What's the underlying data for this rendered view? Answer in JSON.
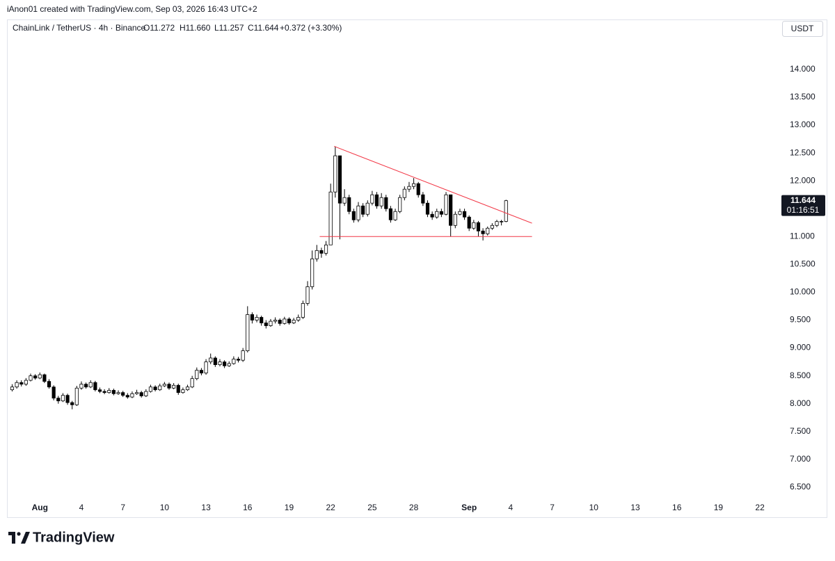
{
  "header": {
    "credit": "iAnon01 created with TradingView.com, Sep 03, 2026 16:43 UTC+2",
    "symbol": "ChainLink / TetherUS · 4h · Binance",
    "ohlc": [
      "O11.272",
      "H11.660",
      "L11.257",
      "C11.644"
    ],
    "change": "+0.372 (+3.30%)",
    "currency": "USDT",
    "countdown": "01:16:51",
    "brand": "TradingView"
  },
  "chart_data": {
    "type": "candlestick",
    "x": [
      -48,
      -40,
      -32,
      -24,
      -16,
      -8,
      0,
      8,
      16,
      24,
      32,
      40,
      48,
      56,
      64,
      72,
      80,
      88,
      96,
      104,
      112,
      120,
      128,
      136,
      144,
      152,
      160,
      168,
      176,
      184,
      192,
      200,
      208,
      216,
      224,
      232,
      240,
      248,
      256,
      264,
      272,
      280,
      288,
      296,
      304,
      312,
      320,
      328,
      336,
      344,
      352,
      360,
      368,
      376,
      384,
      392,
      400,
      408,
      416,
      424,
      432,
      440,
      448,
      456,
      464,
      472,
      480,
      488,
      496,
      504,
      512,
      520,
      528,
      536,
      544,
      552,
      560,
      568,
      576,
      584,
      592,
      600,
      608,
      616,
      624,
      632,
      640,
      648,
      656,
      664,
      672,
      680,
      688,
      696,
      704,
      712,
      720,
      728,
      736,
      744,
      752,
      760,
      768,
      776,
      784,
      792,
      800,
      808
    ],
    "open": [
      8.25,
      8.3,
      8.38,
      8.35,
      8.42,
      8.5,
      8.46,
      8.52,
      8.4,
      8.3,
      8.1,
      8.05,
      8.15,
      8.02,
      7.98,
      8.28,
      8.35,
      8.3,
      8.38,
      8.25,
      8.22,
      8.2,
      8.24,
      8.18,
      8.2,
      8.15,
      8.12,
      8.18,
      8.2,
      8.14,
      8.22,
      8.3,
      8.25,
      8.32,
      8.35,
      8.28,
      8.33,
      8.2,
      8.25,
      8.3,
      8.45,
      8.6,
      8.55,
      8.75,
      8.82,
      8.7,
      8.75,
      8.68,
      8.72,
      8.8,
      8.78,
      8.95,
      9.6,
      9.5,
      9.55,
      9.45,
      9.4,
      9.48,
      9.5,
      9.44,
      9.52,
      9.45,
      9.5,
      9.55,
      9.8,
      10.1,
      10.6,
      10.75,
      10.7,
      10.85,
      11.8,
      12.45,
      11.6,
      11.7,
      11.45,
      11.3,
      11.55,
      11.4,
      11.6,
      11.75,
      11.55,
      11.7,
      11.5,
      11.3,
      11.45,
      11.7,
      11.85,
      11.9,
      11.95,
      11.75,
      11.6,
      11.4,
      11.35,
      11.45,
      11.4,
      11.75,
      11.2,
      11.4,
      11.45,
      11.35,
      11.15,
      11.25,
      11.1,
      11.05,
      11.15,
      11.2,
      11.27,
      11.272
    ],
    "high": [
      8.35,
      8.42,
      8.42,
      8.46,
      8.54,
      8.53,
      8.56,
      8.54,
      8.44,
      8.33,
      8.14,
      8.19,
      8.18,
      8.05,
      8.32,
      8.4,
      8.38,
      8.42,
      8.41,
      8.29,
      8.26,
      8.28,
      8.27,
      8.24,
      8.23,
      8.19,
      8.22,
      8.25,
      8.23,
      8.26,
      8.34,
      8.33,
      8.36,
      8.39,
      8.38,
      8.37,
      8.36,
      8.29,
      8.34,
      8.5,
      8.65,
      8.64,
      8.8,
      8.9,
      8.85,
      8.8,
      8.78,
      8.76,
      8.85,
      8.84,
      9.0,
      9.75,
      9.64,
      9.6,
      9.58,
      9.5,
      9.52,
      9.55,
      9.53,
      9.56,
      9.55,
      9.54,
      9.6,
      9.85,
      10.2,
      10.75,
      10.85,
      10.8,
      10.92,
      11.95,
      12.62,
      12.4,
      11.85,
      11.75,
      11.5,
      11.62,
      11.6,
      11.65,
      11.82,
      11.8,
      11.78,
      11.75,
      11.55,
      11.5,
      11.75,
      11.9,
      11.98,
      12.05,
      11.98,
      11.8,
      11.65,
      11.45,
      11.5,
      11.5,
      11.8,
      11.75,
      11.45,
      11.5,
      11.5,
      11.38,
      11.3,
      11.28,
      11.15,
      11.18,
      11.24,
      11.3,
      11.3,
      11.66
    ],
    "low": [
      8.22,
      8.27,
      8.31,
      8.32,
      8.4,
      8.43,
      8.44,
      8.37,
      8.27,
      8.06,
      8.0,
      8.03,
      7.98,
      7.9,
      7.96,
      8.25,
      8.27,
      8.28,
      8.22,
      8.19,
      8.17,
      8.18,
      8.15,
      8.16,
      8.12,
      8.09,
      8.1,
      8.16,
      8.11,
      8.12,
      8.2,
      8.22,
      8.23,
      8.3,
      8.25,
      8.26,
      8.16,
      8.18,
      8.23,
      8.28,
      8.42,
      8.51,
      8.52,
      8.71,
      8.66,
      8.67,
      8.64,
      8.66,
      8.7,
      8.74,
      8.75,
      8.92,
      9.44,
      9.46,
      9.4,
      9.35,
      9.38,
      9.44,
      9.4,
      9.42,
      9.42,
      9.43,
      9.47,
      9.52,
      9.76,
      10.05,
      10.55,
      10.62,
      10.66,
      10.85,
      11.7,
      10.95,
      11.55,
      11.4,
      11.25,
      11.26,
      11.35,
      11.36,
      11.56,
      11.5,
      11.5,
      11.45,
      11.25,
      11.28,
      11.42,
      11.65,
      11.8,
      11.85,
      11.7,
      11.55,
      11.35,
      11.3,
      11.32,
      11.35,
      11.38,
      11.0,
      11.15,
      11.38,
      11.3,
      11.1,
      11.12,
      11.0,
      10.93,
      11.02,
      11.12,
      11.17,
      11.2,
      11.257
    ],
    "close": [
      8.3,
      8.38,
      8.35,
      8.42,
      8.5,
      8.46,
      8.52,
      8.4,
      8.3,
      8.1,
      8.05,
      8.15,
      8.02,
      7.98,
      8.28,
      8.35,
      8.3,
      8.38,
      8.25,
      8.22,
      8.2,
      8.24,
      8.18,
      8.2,
      8.15,
      8.12,
      8.18,
      8.2,
      8.14,
      8.22,
      8.3,
      8.25,
      8.32,
      8.35,
      8.28,
      8.33,
      8.2,
      8.25,
      8.3,
      8.45,
      8.6,
      8.55,
      8.75,
      8.82,
      8.7,
      8.75,
      8.68,
      8.72,
      8.8,
      8.78,
      8.95,
      9.6,
      9.5,
      9.55,
      9.45,
      9.4,
      9.48,
      9.5,
      9.44,
      9.52,
      9.45,
      9.5,
      9.55,
      9.8,
      10.1,
      10.6,
      10.75,
      10.7,
      10.85,
      11.8,
      12.45,
      11.6,
      11.7,
      11.45,
      11.3,
      11.55,
      11.4,
      11.6,
      11.75,
      11.55,
      11.7,
      11.5,
      11.3,
      11.45,
      11.7,
      11.85,
      11.9,
      11.95,
      11.75,
      11.6,
      11.4,
      11.35,
      11.45,
      11.4,
      11.75,
      11.2,
      11.4,
      11.45,
      11.35,
      11.15,
      11.25,
      11.1,
      11.05,
      11.15,
      11.2,
      11.27,
      11.272,
      11.644
    ],
    "up_color": "#ffffff",
    "down_color": "#000000",
    "border_color": "#000000",
    "lines": [
      {
        "x": [
          510,
          853
        ],
        "y": [
          12.62,
          11.24
        ],
        "color": "#f23645"
      },
      {
        "x": [
          485,
          853
        ],
        "y": [
          11.0,
          11.0
        ],
        "color": "#f23645"
      }
    ],
    "xlim": [
      -57,
      1275.6
    ],
    "xticks": [
      {
        "value": 0,
        "label": "Aug"
      },
      {
        "value": 72,
        "label": "4"
      },
      {
        "value": 144,
        "label": "7"
      },
      {
        "value": 216,
        "label": "10"
      },
      {
        "value": 288,
        "label": "13"
      },
      {
        "value": 360,
        "label": "16"
      },
      {
        "value": 432,
        "label": "19"
      },
      {
        "value": 504,
        "label": "22"
      },
      {
        "value": 576,
        "label": "25"
      },
      {
        "value": 648,
        "label": "28"
      },
      {
        "value": 744,
        "label": "Sep"
      },
      {
        "value": 816,
        "label": "4"
      },
      {
        "value": 888,
        "label": "7"
      },
      {
        "value": 960,
        "label": "10"
      },
      {
        "value": 1032,
        "label": "13"
      },
      {
        "value": 1104,
        "label": "16"
      },
      {
        "value": 1176,
        "label": "19"
      },
      {
        "value": 1248,
        "label": "22"
      }
    ],
    "ylim": [
      5.95,
      14.56
    ],
    "yticks": [
      {
        "value": 6.5,
        "label": "6.500"
      },
      {
        "value": 7,
        "label": "7.000"
      },
      {
        "value": 7.5,
        "label": "7.500"
      },
      {
        "value": 8,
        "label": "8.000"
      },
      {
        "value": 8.5,
        "label": "8.500"
      },
      {
        "value": 9,
        "label": "9.000"
      },
      {
        "value": 9.5,
        "label": "9.500"
      },
      {
        "value": 10,
        "label": "10.000"
      },
      {
        "value": 10.5,
        "label": "10.500"
      },
      {
        "value": 11,
        "label": "11.000"
      },
      {
        "value": 11.5,
        "label": "11.500"
      },
      {
        "value": 12,
        "label": "12.000"
      },
      {
        "value": 12.5,
        "label": "12.500"
      },
      {
        "value": 13,
        "label": "13.000"
      },
      {
        "value": 13.5,
        "label": "13.500"
      },
      {
        "value": 14,
        "label": "14.000"
      }
    ],
    "grid": false
  }
}
